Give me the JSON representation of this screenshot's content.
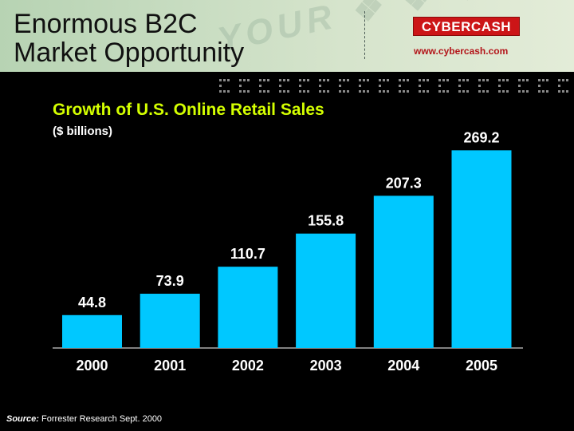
{
  "slide": {
    "title_line1": "Enormous B2C",
    "title_line2": "Market Opportunity",
    "logo_text": "CYBERCASH",
    "logo_url": "www.cybercash.com",
    "source_label": "Source:",
    "source_text": "Forrester Research Sept. 2000"
  },
  "colors": {
    "bar": "#00c8ff",
    "title": "#d4ff00",
    "header_bg": "#c9ddc2",
    "logo_red": "#cc1517"
  },
  "chart_data": {
    "type": "bar",
    "title": "Growth of U.S. Online Retail Sales",
    "subtitle": "($ billions)",
    "categories": [
      "2000",
      "2001",
      "2002",
      "2003",
      "2004",
      "2005"
    ],
    "values": [
      44.8,
      73.9,
      110.7,
      155.8,
      207.3,
      269.2
    ],
    "ylim": [
      0,
      300
    ],
    "grid": false,
    "legend": "none"
  }
}
